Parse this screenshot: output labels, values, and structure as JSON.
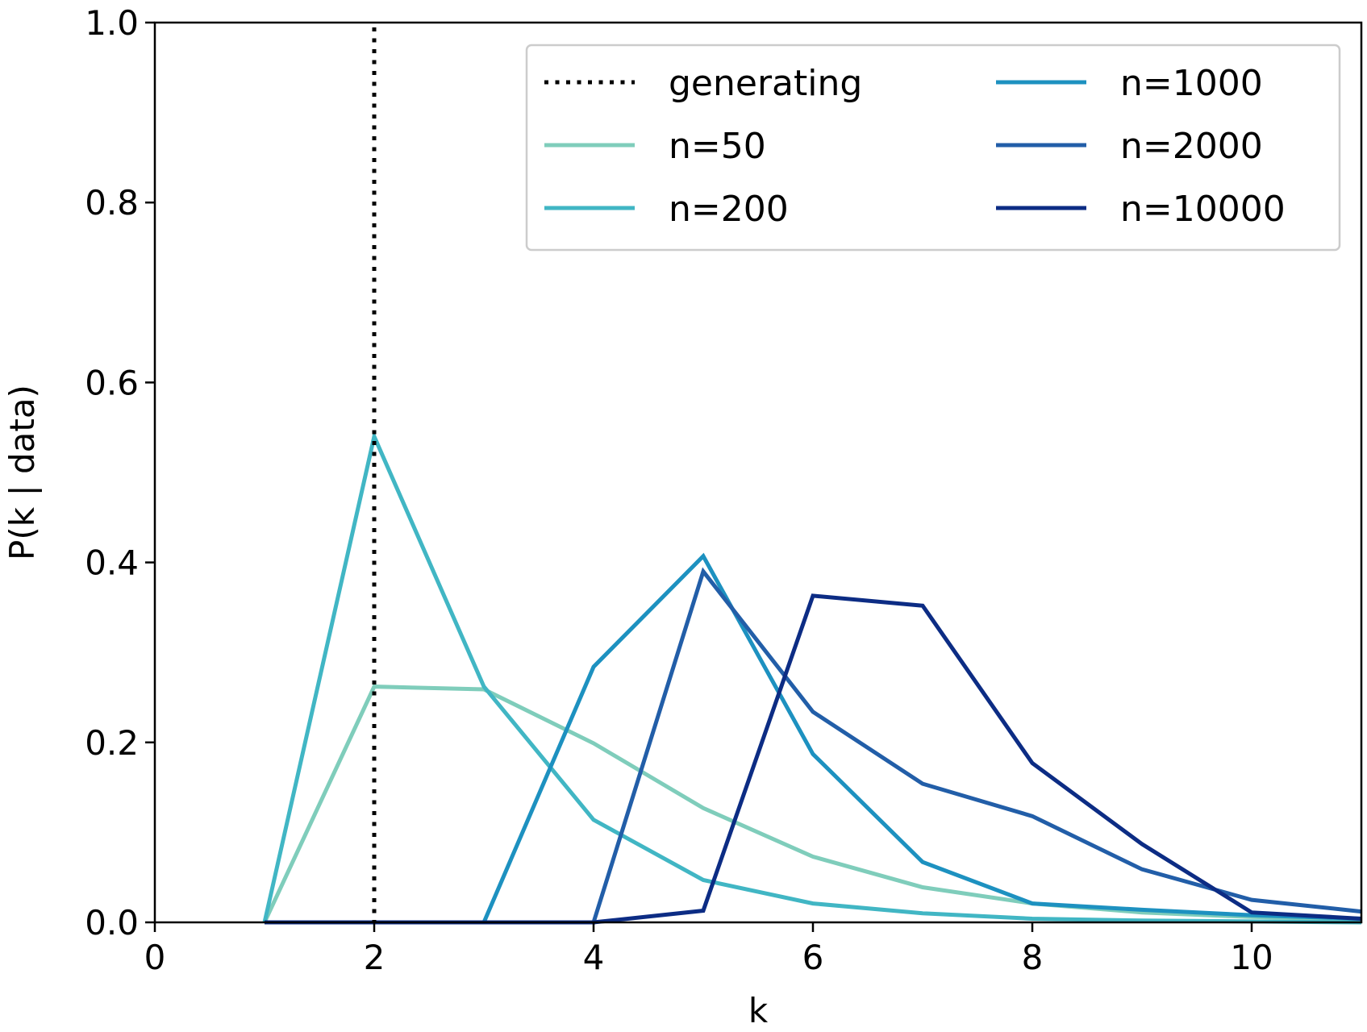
{
  "chart_data": {
    "type": "line",
    "xlabel": "k",
    "ylabel": "P(k | data)",
    "xlim": [
      0,
      11
    ],
    "ylim": [
      0,
      1.0
    ],
    "x_ticks": [
      "0",
      "2",
      "4",
      "6",
      "8",
      "10"
    ],
    "y_ticks": [
      "0.0",
      "0.2",
      "0.4",
      "0.6",
      "0.8",
      "1.0"
    ],
    "grid": false,
    "legend_position": "top-right",
    "legend_columns": 2,
    "reference_line": {
      "name": "generating",
      "x": 2,
      "style": "dotted",
      "color": "#000000"
    },
    "x": [
      1,
      2,
      3,
      4,
      5,
      6,
      7,
      8,
      9,
      10,
      11
    ],
    "series": [
      {
        "name": "n=50",
        "color": "#7fcdbb",
        "values": [
          0.0,
          0.262,
          0.259,
          0.199,
          0.127,
          0.073,
          0.039,
          0.021,
          0.011,
          0.006,
          0.003
        ]
      },
      {
        "name": "n=200",
        "color": "#41b6c4",
        "values": [
          0.0,
          0.54,
          0.262,
          0.114,
          0.047,
          0.021,
          0.01,
          0.004,
          0.002,
          0.001,
          0.0
        ]
      },
      {
        "name": "n=1000",
        "color": "#1d91c0",
        "values": [
          0.0,
          0.0,
          0.0,
          0.284,
          0.407,
          0.187,
          0.067,
          0.021,
          0.014,
          0.008,
          0.004
        ]
      },
      {
        "name": "n=2000",
        "color": "#225ea8",
        "values": [
          0.0,
          0.0,
          0.0,
          0.0,
          0.39,
          0.234,
          0.154,
          0.118,
          0.059,
          0.025,
          0.012
        ]
      },
      {
        "name": "n=10000",
        "color": "#0c2c84",
        "values": [
          0.0,
          0.0,
          0.0,
          0.0,
          0.013,
          0.363,
          0.352,
          0.177,
          0.087,
          0.011,
          0.004
        ]
      }
    ]
  }
}
